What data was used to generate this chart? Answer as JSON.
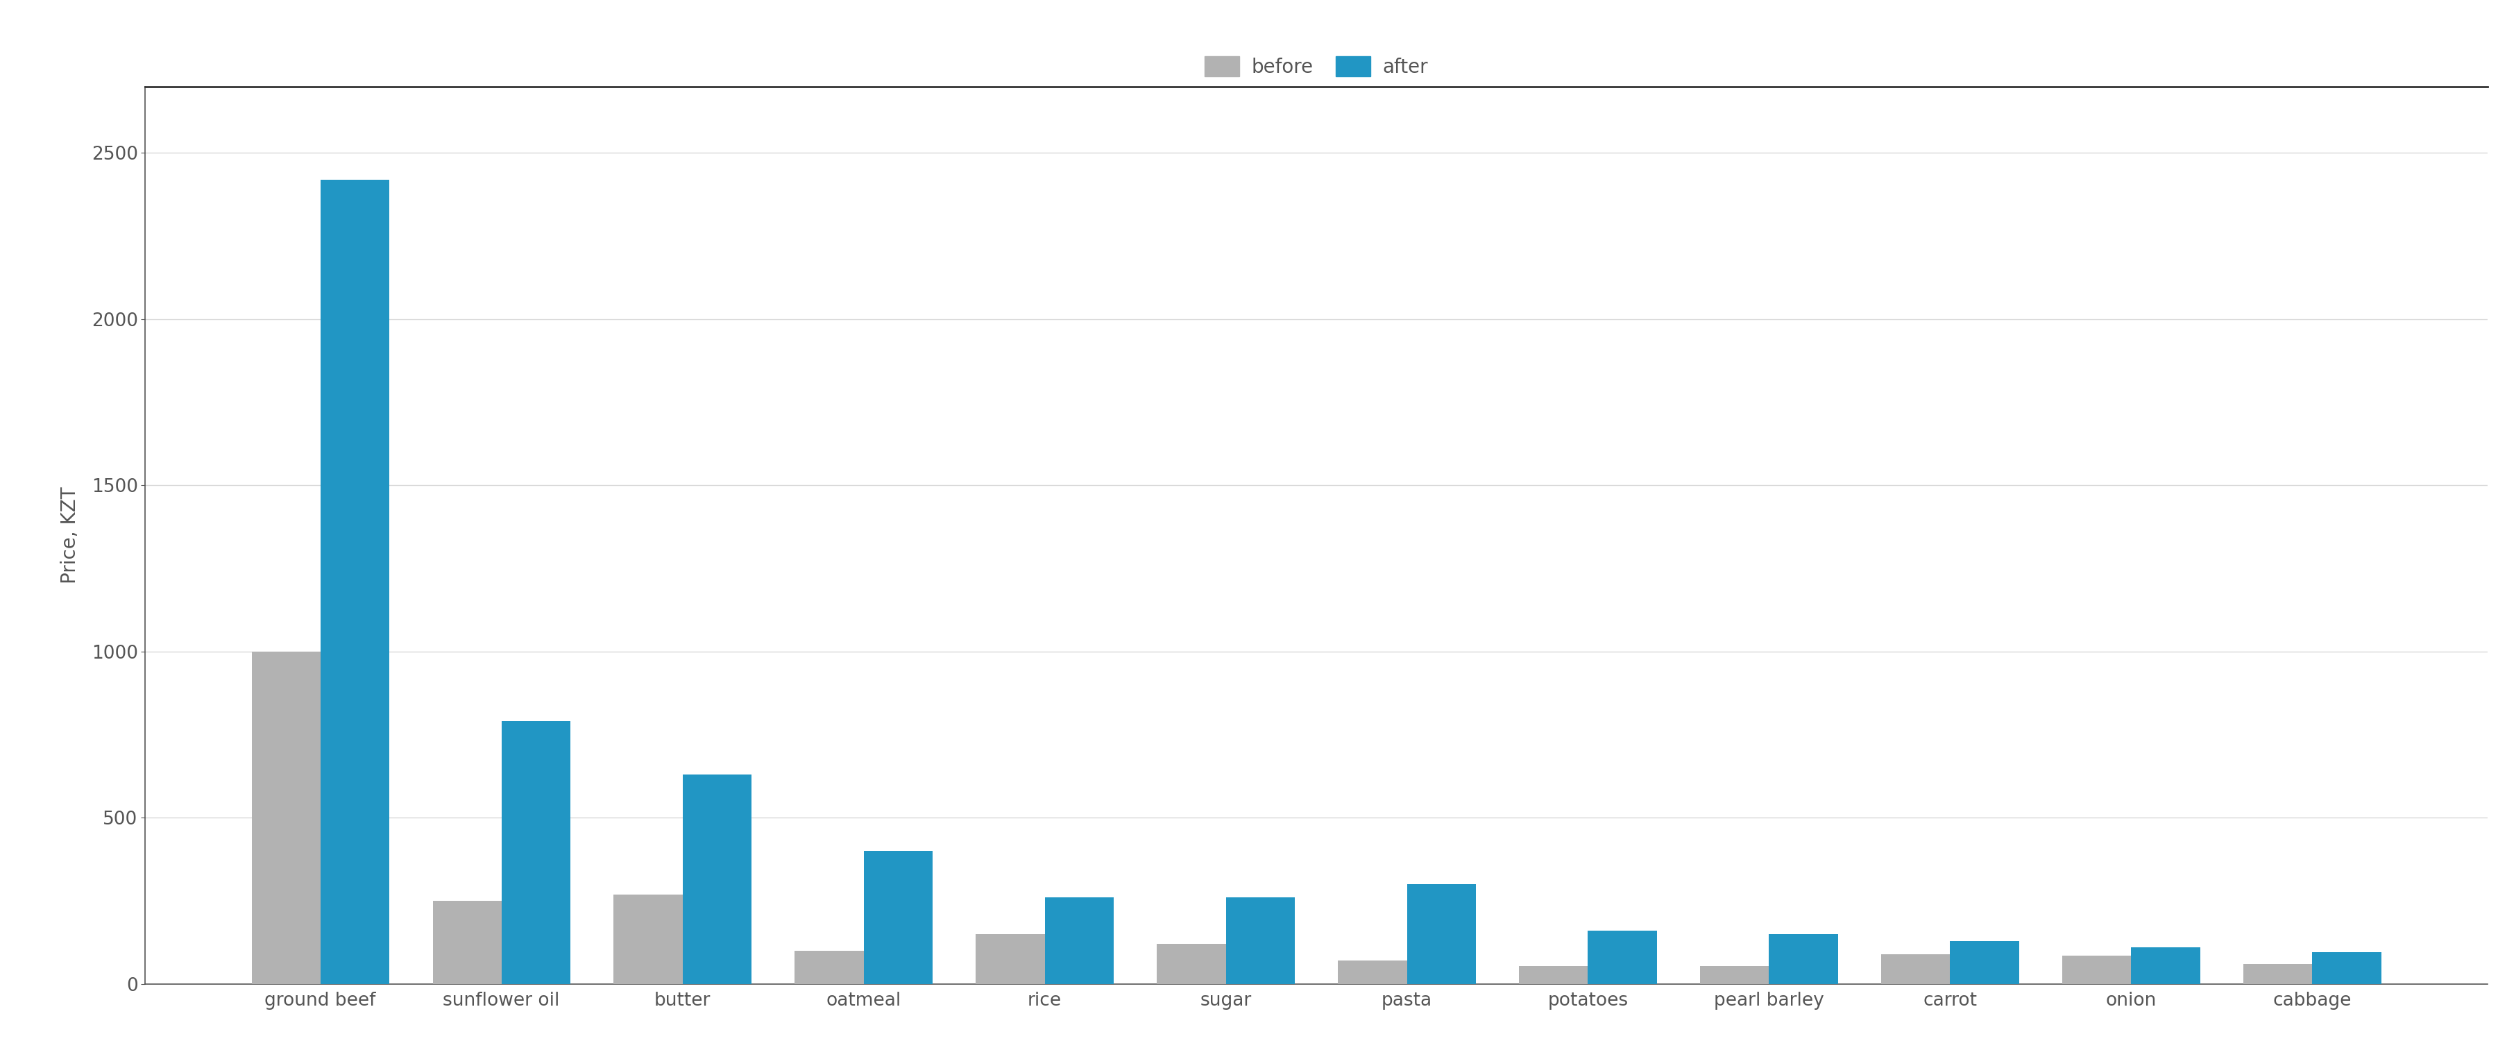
{
  "categories": [
    "ground beef",
    "sunflower oil",
    "butter",
    "oatmeal",
    "rice",
    "sugar",
    "pasta",
    "potatoes",
    "pearl barley",
    "carrot",
    "onion",
    "cabbage"
  ],
  "before": [
    1000,
    250,
    270,
    100,
    150,
    120,
    70,
    55,
    55,
    90,
    85,
    60
  ],
  "after": [
    2420,
    790,
    630,
    400,
    260,
    260,
    300,
    160,
    150,
    130,
    110,
    95
  ],
  "before_color": "#b2b2b2",
  "after_color": "#2196C4",
  "ylabel": "Price, KZT",
  "background_color": "#ffffff",
  "ylim": [
    0,
    2700
  ],
  "yticks": [
    0,
    500,
    1000,
    1500,
    2000,
    2500
  ],
  "legend_labels": [
    "before",
    "after"
  ],
  "bar_width": 0.38,
  "grid_color": "#d8d8d8",
  "top_spine_color": "#333333",
  "axis_color": "#555555",
  "tick_label_color": "#555555",
  "ylabel_fontsize": 20,
  "tick_fontsize": 19
}
